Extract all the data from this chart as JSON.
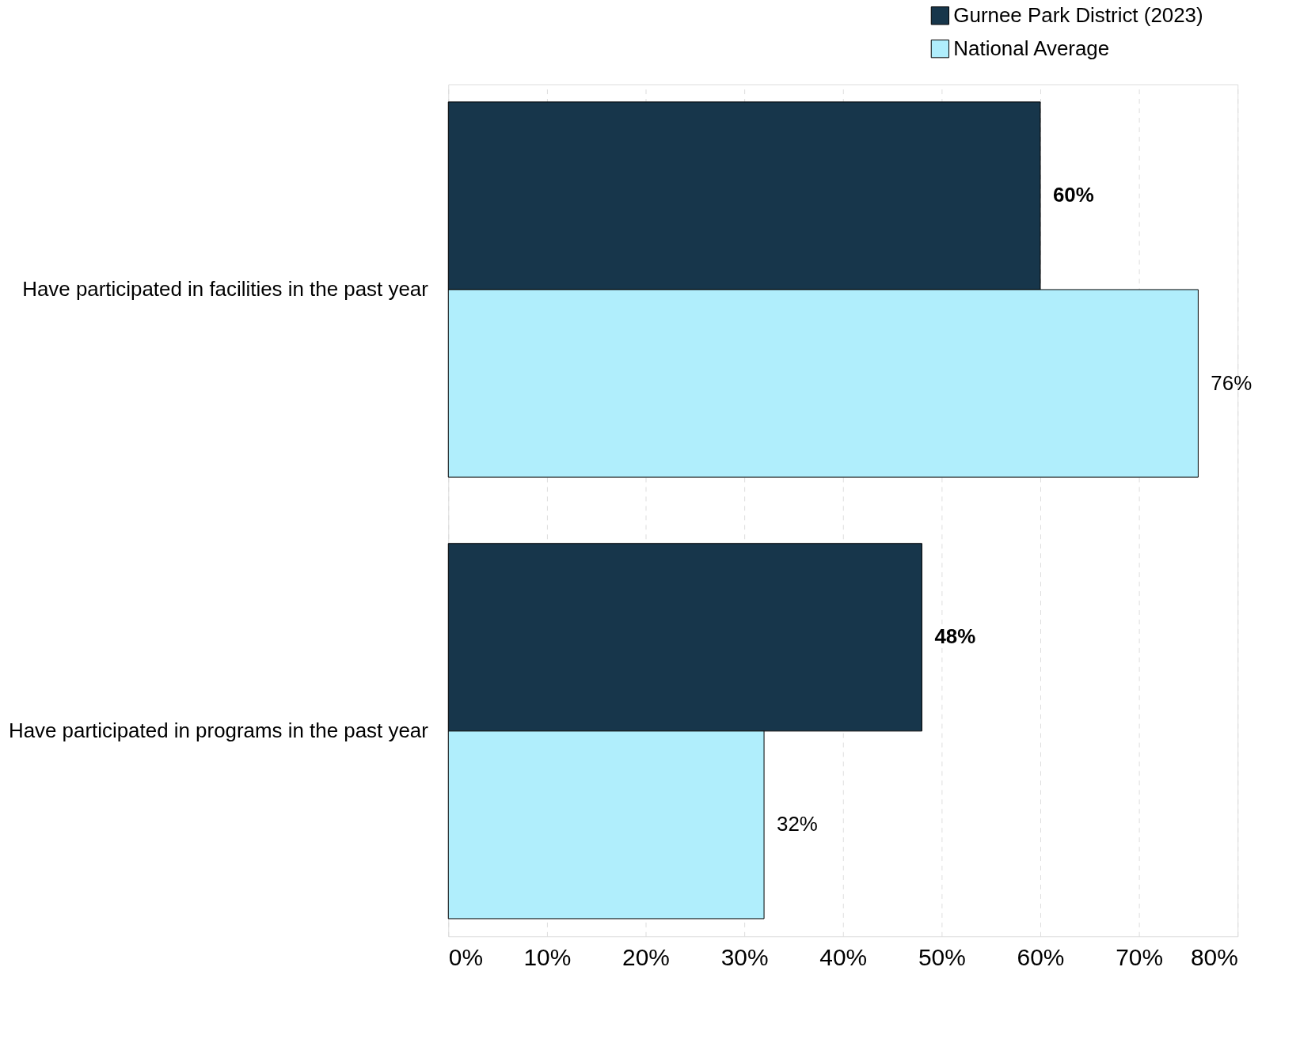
{
  "chart_data": {
    "type": "bar",
    "orientation": "horizontal",
    "categories": [
      "Have participated in facilities in the past year",
      "Have participated in programs in the past year"
    ],
    "series": [
      {
        "name": "Gurnee Park District (2023)",
        "color": "#17364b",
        "values": [
          60,
          48
        ],
        "value_labels": [
          "60%",
          "48%"
        ]
      },
      {
        "name": "National Average",
        "color": "#b0eefc",
        "values": [
          76,
          32
        ],
        "value_labels": [
          "76%",
          "32%"
        ]
      }
    ],
    "xlim": [
      0,
      80
    ],
    "xticks": [
      {
        "value": 0,
        "label": "0%"
      },
      {
        "value": 10,
        "label": "10%"
      },
      {
        "value": 20,
        "label": "20%"
      },
      {
        "value": 30,
        "label": "30%"
      },
      {
        "value": 40,
        "label": "40%"
      },
      {
        "value": 50,
        "label": "50%"
      },
      {
        "value": 60,
        "label": "60%"
      },
      {
        "value": 70,
        "label": "70%"
      },
      {
        "value": 80,
        "label": "80%"
      }
    ],
    "grid": "x",
    "legend": "top right"
  }
}
